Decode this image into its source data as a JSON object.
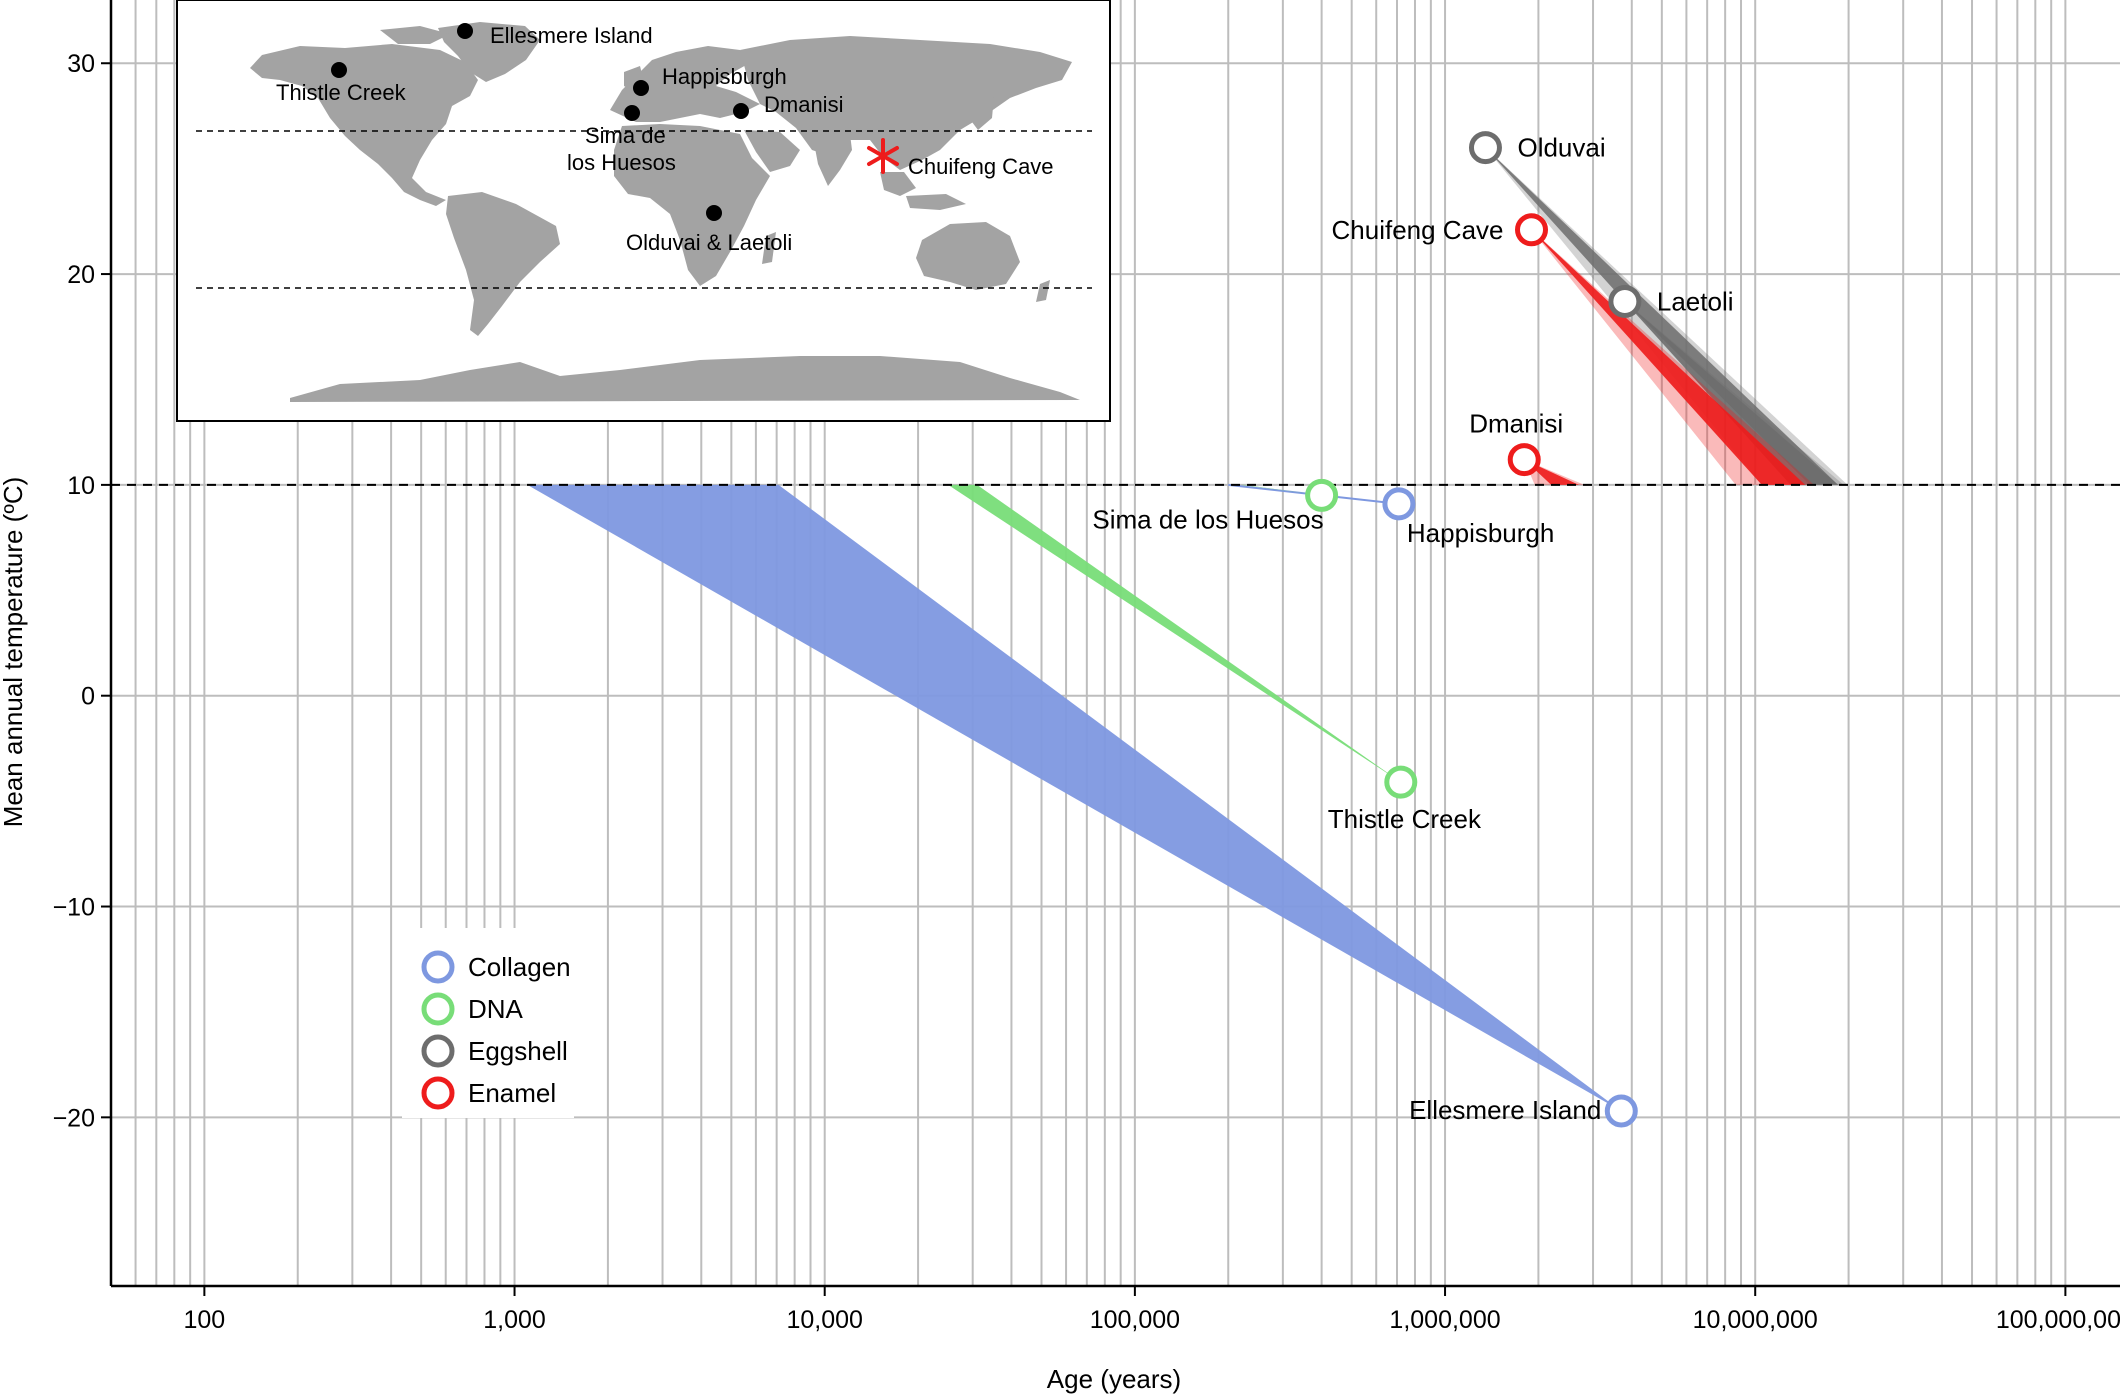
{
  "chart_data": {
    "type": "scatter",
    "xlabel": "Age (years)",
    "ylabel": "Mean annual temperature (ºC)",
    "x_scale": "log",
    "xlim": [
      50,
      150000000
    ],
    "ylim": [
      -28,
      33
    ],
    "grid": true,
    "reference_line": {
      "y": 10,
      "style": "dashed"
    },
    "x_ticks": [
      {
        "value": 100,
        "label": "100"
      },
      {
        "value": 1000,
        "label": "1,000"
      },
      {
        "value": 10000,
        "label": "10,000"
      },
      {
        "value": 100000,
        "label": "100,000"
      },
      {
        "value": 1000000,
        "label": "1,000,000"
      },
      {
        "value": 10000000,
        "label": "10,000,000"
      },
      {
        "value": 100000000,
        "label": "100,000,000"
      }
    ],
    "y_ticks": [
      {
        "value": 30,
        "label": "30"
      },
      {
        "value": 20,
        "label": "20"
      },
      {
        "value": 10,
        "label": "10"
      },
      {
        "value": 0,
        "label": "0"
      },
      {
        "value": -10,
        "label": "−10"
      },
      {
        "value": -20,
        "label": "−20"
      }
    ],
    "legend": {
      "position": "bottom-left",
      "entries": [
        {
          "label": "Collagen",
          "color": "#7e98e0"
        },
        {
          "label": "DNA",
          "color": "#78dd78"
        },
        {
          "label": "Eggshell",
          "color": "#6d6d6d"
        },
        {
          "label": "Enamel",
          "color": "#ee1c1c"
        }
      ]
    },
    "series": [
      {
        "name": "Collagen",
        "color": "#7e98e0",
        "points": [
          {
            "label": "Ellesmere Island",
            "x": 3700000,
            "y": -19.7,
            "wedge_at_10": [
              1100,
              7100
            ]
          },
          {
            "label": "Happisburgh",
            "x": 710000,
            "y": 9.1,
            "wedge_at_10": [
              200000,
              200000
            ]
          }
        ]
      },
      {
        "name": "DNA",
        "color": "#78dd78",
        "points": [
          {
            "label": "Thistle Creek",
            "x": 720000,
            "y": -4.1,
            "wedge_at_10": [
              25000,
              31000
            ]
          },
          {
            "label": "Sima de los Huesos",
            "x": 400000,
            "y": 9.5,
            "wedge_at_10": [
              220000,
              225000
            ]
          }
        ]
      },
      {
        "name": "Eggshell",
        "color": "#6d6d6d",
        "points": [
          {
            "label": "Olduvai",
            "x": 1350000,
            "y": 26.0,
            "wedge_at_10": [
              13000000,
              18500000
            ]
          },
          {
            "label": "Laetoli",
            "x": 3800000,
            "y": 18.7,
            "wedge_at_10": [
              15000000,
              18500000
            ]
          }
        ]
      },
      {
        "name": "Enamel",
        "color": "#ee1c1c",
        "points": [
          {
            "label": "Chuifeng Cave",
            "x": 1900000,
            "y": 22.1,
            "wedge_at_10": [
              10500000,
              14500000
            ]
          },
          {
            "label": "Dmanisi",
            "x": 1800000,
            "y": 11.2,
            "wedge_at_10": [
              2200000,
              2700000
            ]
          }
        ]
      }
    ],
    "inset_map": {
      "sites": [
        {
          "label": "Ellesmere Island",
          "marker": "dot",
          "lon": -78,
          "lat": 80
        },
        {
          "label": "Thistle Creek",
          "marker": "dot",
          "lon": -139,
          "lat": 64
        },
        {
          "label": "Happisburgh",
          "marker": "dot",
          "lon": 1.5,
          "lat": 53
        },
        {
          "label": "Sima de\nlos Huesos",
          "marker": "dot",
          "lon": -3.5,
          "lat": 42
        },
        {
          "label": "Dmanisi",
          "marker": "dot",
          "lon": 44,
          "lat": 41
        },
        {
          "label": "Chuifeng Cave",
          "marker": "asterisk",
          "lon": 107,
          "lat": 24,
          "color": "#ee1c1c"
        },
        {
          "label": "Olduvai & Laetoli",
          "marker": "dot",
          "lon": 35,
          "lat": -3
        }
      ]
    }
  }
}
